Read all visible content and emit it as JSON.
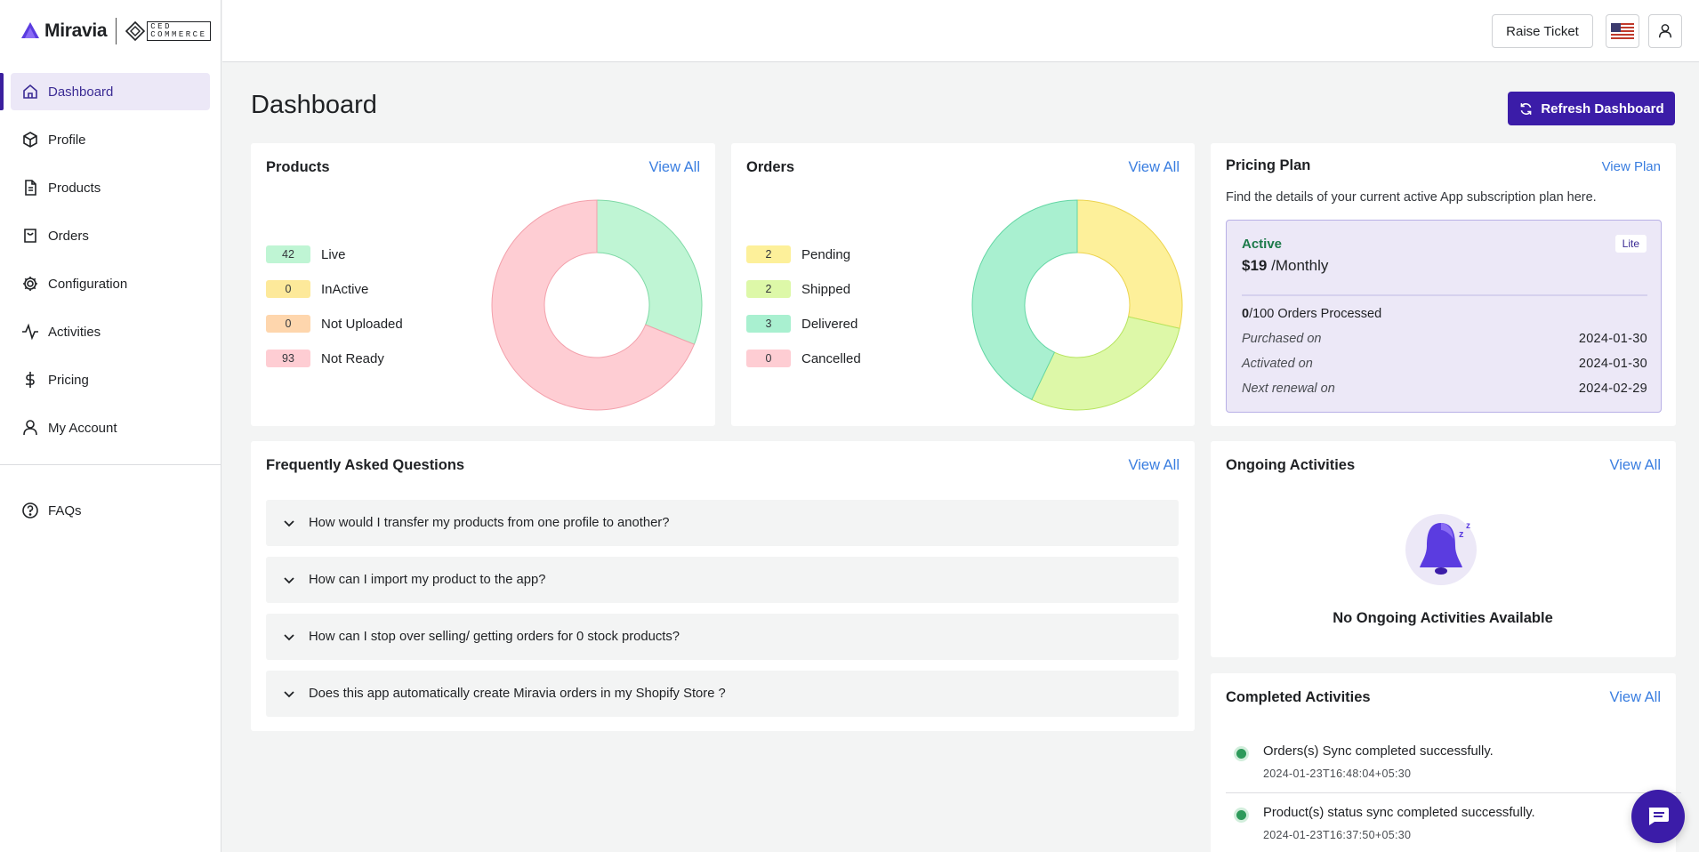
{
  "brand": {
    "name": "Miravia",
    "partner_line1": "CED",
    "partner_line2": "COMMERCE"
  },
  "sidebar": {
    "items": [
      {
        "label": "Dashboard",
        "icon": "home-icon",
        "active": true
      },
      {
        "label": "Profile",
        "icon": "cube-icon"
      },
      {
        "label": "Products",
        "icon": "document-icon"
      },
      {
        "label": "Orders",
        "icon": "shopping-bag-icon"
      },
      {
        "label": "Configuration",
        "icon": "gear-icon"
      },
      {
        "label": "Activities",
        "icon": "activity-icon"
      },
      {
        "label": "Pricing",
        "icon": "dollar-icon"
      },
      {
        "label": "My Account",
        "icon": "user-icon"
      }
    ],
    "footer_items": [
      {
        "label": "FAQs",
        "icon": "help-circle-icon"
      }
    ]
  },
  "topbar": {
    "raise_ticket": "Raise Ticket",
    "flag_icon": "us-flag-icon",
    "user_icon": "user-icon"
  },
  "page": {
    "title": "Dashboard",
    "refresh_label": "Refresh Dashboard"
  },
  "products": {
    "title": "Products",
    "view_all": "View All",
    "legend": [
      {
        "count": "42",
        "label": "Live",
        "color": "#bff5d4"
      },
      {
        "count": "0",
        "label": "InActive",
        "color": "#fde99a"
      },
      {
        "count": "0",
        "label": "Not Uploaded",
        "color": "#fed6ad"
      },
      {
        "count": "93",
        "label": "Not Ready",
        "color": "#fecdd3"
      }
    ]
  },
  "orders": {
    "title": "Orders",
    "view_all": "View All",
    "legend": [
      {
        "count": "2",
        "label": "Pending",
        "color": "#fdf09a"
      },
      {
        "count": "2",
        "label": "Shipped",
        "color": "#ddf8a8"
      },
      {
        "count": "3",
        "label": "Delivered",
        "color": "#a9f0d0"
      },
      {
        "count": "0",
        "label": "Cancelled",
        "color": "#fecdd3"
      }
    ]
  },
  "pricing": {
    "title": "Pricing Plan",
    "view_plan": "View Plan",
    "subtitle": "Find the details of your current active App subscription plan here.",
    "status": "Active",
    "price": "$19",
    "period": "/Monthly",
    "plan_badge": "Lite",
    "orders_used": "0",
    "orders_rest": "/100 Orders Processed",
    "orders_processed": 0,
    "orders_limit": 100,
    "rows": [
      {
        "key": "Purchased on",
        "value": "2024-01-30"
      },
      {
        "key": "Activated on",
        "value": "2024-01-30"
      },
      {
        "key": "Next renewal on",
        "value": "2024-02-29"
      }
    ]
  },
  "faq": {
    "title": "Frequently Asked Questions",
    "view_all": "View All",
    "items": [
      "How would I transfer my products from one profile to another?",
      "How can I import my product to the app?",
      "How can I stop over selling/ getting orders for 0 stock products?",
      "Does this app automatically create Miravia orders in my Shopify Store ?"
    ]
  },
  "ongoing": {
    "title": "Ongoing Activities",
    "view_all": "View All",
    "empty_text": "No Ongoing Activities Available"
  },
  "completed": {
    "title": "Completed Activities",
    "view_all": "View All",
    "items": [
      {
        "text": "Orders(s) Sync completed successfully.",
        "time": "2024-01-23T16:48:04+05:30"
      },
      {
        "text": "Product(s) status sync completed successfully.",
        "time": "2024-01-23T16:37:50+05:30"
      }
    ]
  },
  "chart_data": [
    {
      "type": "pie",
      "title": "Products",
      "categories": [
        "Live",
        "InActive",
        "Not Uploaded",
        "Not Ready"
      ],
      "values": [
        42,
        0,
        0,
        93
      ],
      "colors": [
        "#bff5d4",
        "#fde99a",
        "#fed6ad",
        "#fecdd3"
      ],
      "stroke_colors": [
        "#7fd9a6",
        "#f0cf52",
        "#f5b072",
        "#f3a0ab"
      ]
    },
    {
      "type": "pie",
      "title": "Orders",
      "categories": [
        "Pending",
        "Shipped",
        "Delivered",
        "Cancelled"
      ],
      "values": [
        2,
        2,
        3,
        0
      ],
      "colors": [
        "#fdf09a",
        "#ddf8a8",
        "#a9f0d0",
        "#fecdd3"
      ],
      "stroke_colors": [
        "#ecd44f",
        "#b6e45e",
        "#63d6a4",
        "#f3a0ab"
      ]
    }
  ]
}
